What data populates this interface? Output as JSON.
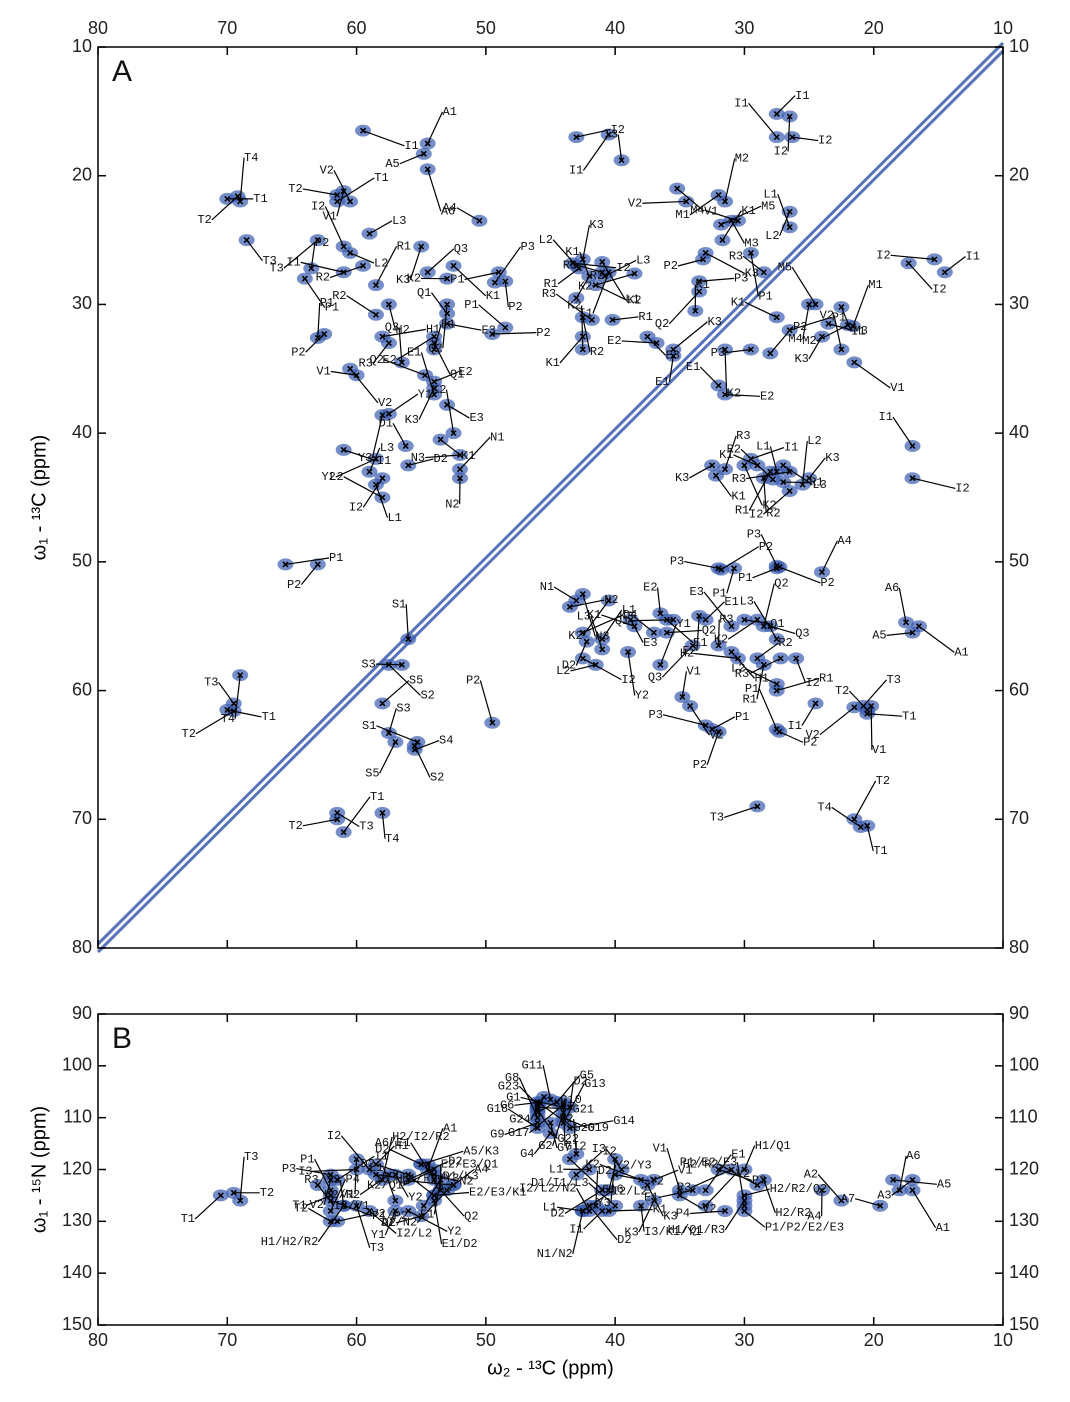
{
  "chart_data": [
    {
      "type": "scatter",
      "panel_label": "A",
      "ylabel": "ω₁ - ¹³C (ppm)",
      "x_tick_labels": "top",
      "xlim": [
        80,
        10
      ],
      "ylim": [
        10,
        80
      ],
      "xticks": [
        80,
        70,
        60,
        50,
        40,
        30,
        20,
        10
      ],
      "yticks": [
        10,
        20,
        30,
        40,
        50,
        60,
        70,
        80
      ],
      "diagonal": true,
      "color": "#3a5cb0",
      "labels": [
        "T1",
        "T2",
        "T4",
        "T3",
        "T2",
        "T1",
        "V1",
        "V2",
        "I1",
        "A5",
        "A1",
        "A6",
        "A4",
        "I2",
        "I1",
        "I3",
        "V1",
        "V2",
        "I1",
        "I2",
        "I1",
        "I2",
        "M1",
        "M2",
        "M3",
        "M4",
        "M5",
        "L2",
        "L1",
        "K3",
        "P2",
        "K1",
        "P1",
        "R3",
        "P3",
        "Q2",
        "K1",
        "I2",
        "I2",
        "I1",
        "M4",
        "M5",
        "M3",
        "M2",
        "M1",
        "I1",
        "K1",
        "P1",
        "K3",
        "V2",
        "V1",
        "P3",
        "P2",
        "K2",
        "E1",
        "E2",
        "T3",
        "P2",
        "P1",
        "I1",
        "L3",
        "K3",
        "I2",
        "L2",
        "R2",
        "R1",
        "H2",
        "R2",
        "H1",
        "R3",
        "Q3",
        "K1",
        "K2",
        "Q3",
        "Q2",
        "Q1",
        "E3",
        "E2",
        "E1",
        "Q1",
        "Q2",
        "E2",
        "K3",
        "E1",
        "E3",
        "P1",
        "P3",
        "P2",
        "P1",
        "P2",
        "P2",
        "P1",
        "V2",
        "V1",
        "Y1",
        "Y3",
        "D1",
        "I1",
        "Y2",
        "L3",
        "L1",
        "L2",
        "D2",
        "I2",
        "K2",
        "K1",
        "N3",
        "N1",
        "N2",
        "L2",
        "I2",
        "R1",
        "K3",
        "L1",
        "R3",
        "L3",
        "I1",
        "K1",
        "K2",
        "K2",
        "R2",
        "R2",
        "R3",
        "R1",
        "K1",
        "K2",
        "E3",
        "E2",
        "K3",
        "E1",
        "I1",
        "I2",
        "K3",
        "R3",
        "K2",
        "K1",
        "I1",
        "R1",
        "L1",
        "L3",
        "R3",
        "K3",
        "R2",
        "R2",
        "R1",
        "I2",
        "L2",
        "K1",
        "P3",
        "P2",
        "P1",
        "P3",
        "P2",
        "P1",
        "A4",
        "N3",
        "N1",
        "N2",
        "K2",
        "E2",
        "E1",
        "Q1",
        "E1",
        "E2",
        "E3",
        "Q1",
        "K2",
        "Q2",
        "E3",
        "K1",
        "D4",
        "D2",
        "L3",
        "I2",
        "L2",
        "L1",
        "Y2",
        "K3",
        "Q2",
        "Q3",
        "R3",
        "H1",
        "H2",
        "R2",
        "R1",
        "L3",
        "Q3",
        "R3",
        "Y1",
        "I2",
        "L2",
        "R1",
        "I1",
        "A6",
        "A1",
        "A5",
        "T3",
        "V1",
        "T2",
        "T1",
        "V2",
        "V1",
        "V2",
        "P3",
        "P1",
        "P2",
        "P1",
        "P2",
        "T3",
        "T2",
        "T1",
        "T4",
        "P1",
        "P2",
        "S1",
        "S2",
        "S3",
        "S5",
        "T4",
        "T3",
        "T1",
        "T2",
        "S3",
        "S2",
        "S1",
        "S4",
        "S5",
        "P2",
        "T3",
        "T2",
        "T1",
        "T4"
      ],
      "x": [
        70,
        69.2,
        69,
        68.5,
        61.5,
        61.5,
        61,
        60.5,
        59.5,
        54.8,
        54.5,
        54.5,
        50.5,
        43,
        40.5,
        39.5,
        35.2,
        34.5,
        27.5,
        26.5,
        27.5,
        26.3,
        32,
        31.5,
        31,
        30.5,
        31.8,
        26.5,
        26.5,
        33,
        33.2,
        31.7,
        29.5,
        28.5,
        33.5,
        33.5,
        33.8,
        17.3,
        15.3,
        14.5,
        25,
        24.5,
        23.5,
        22,
        21.6,
        22.5,
        27.5,
        26.5,
        24,
        22.5,
        21.5,
        29.5,
        28,
        31.5,
        32,
        31.5,
        63,
        63.5,
        64,
        61,
        59,
        55,
        61,
        60.5,
        59.5,
        58.5,
        57.5,
        58.5,
        58,
        57.5,
        56.5,
        52.5,
        53,
        54.5,
        53,
        53,
        53,
        54,
        54,
        54,
        54.7,
        54,
        54,
        54,
        53,
        49,
        49.3,
        48.5,
        48.5,
        49.5,
        62.5,
        63,
        60.5,
        60,
        57.5,
        58,
        56.2,
        61,
        58.5,
        59,
        58.5,
        58,
        56,
        58,
        52.5,
        53.5,
        52,
        52,
        52,
        43,
        43.3,
        42.8,
        42.5,
        41,
        41,
        40.8,
        40.5,
        42,
        41.5,
        38.5,
        43,
        42.5,
        41.8,
        40.2,
        42.5,
        42.5,
        37.5,
        36.8,
        35.5,
        35.5,
        17,
        17,
        32.5,
        31.5,
        30,
        29,
        29.5,
        28,
        27.5,
        27,
        26.5,
        25,
        28.5,
        27.8,
        27,
        26.5,
        25.5,
        32.2,
        32,
        31.8,
        30.8,
        27.5,
        27.3,
        27.5,
        24,
        42.5,
        43,
        43.5,
        40.5,
        36.5,
        36,
        35.5,
        33,
        33.5,
        31,
        30,
        29,
        28.5,
        38.8,
        38.5,
        42.5,
        42.2,
        41,
        42.5,
        41.5,
        41,
        39,
        37,
        36,
        34,
        32,
        31,
        30.5,
        29,
        28.5,
        27.5,
        28,
        27.2,
        36.5,
        26,
        27.5,
        27.5,
        24.5,
        17.5,
        16.5,
        17,
        20.8,
        20.2,
        20.5,
        20.5,
        21.5,
        34.8,
        34.2,
        33,
        32.5,
        32,
        27.5,
        27.3,
        29,
        21.5,
        20.5,
        21,
        65.5,
        63,
        56,
        57.5,
        56.5,
        58,
        69,
        69.5,
        70,
        69.5,
        57.5,
        55.5,
        55.3,
        55.5,
        57,
        49.5,
        61.5,
        61.5,
        61,
        58
      ],
      "y": [
        21.8,
        21.6,
        22,
        25,
        21.5,
        22,
        21.2,
        22,
        16.5,
        18.3,
        17.5,
        19.5,
        23.5,
        17,
        16.8,
        18.8,
        21,
        22,
        15.2,
        15.4,
        17,
        17,
        21.5,
        22,
        23.5,
        23.5,
        23.8,
        22.8,
        24,
        26,
        26.5,
        25,
        26,
        27.5,
        28.2,
        29,
        30.5,
        26.8,
        26.5,
        27.5,
        30,
        30,
        31.5,
        31.6,
        31.7,
        30.2,
        31,
        32,
        32.5,
        33.5,
        34.5,
        33.5,
        33.8,
        33.5,
        36.3,
        37,
        25,
        27.2,
        28,
        27.5,
        24.5,
        25.5,
        25.5,
        26,
        27,
        28.5,
        30,
        30.8,
        32.5,
        33,
        34.5,
        27,
        28,
        27.5,
        30,
        30.7,
        31.5,
        32.5,
        33.5,
        33,
        35.5,
        36,
        36.5,
        37,
        37.8,
        27.5,
        28.3,
        28.2,
        31.8,
        32.3,
        32.3,
        32.6,
        35,
        35.5,
        38.5,
        38.6,
        41,
        41.3,
        42,
        43,
        44,
        45,
        42.5,
        43.5,
        40,
        40.5,
        41.7,
        42.8,
        43.5,
        27,
        26.8,
        27.2,
        26.5,
        26.7,
        27.5,
        27.8,
        27.5,
        27.8,
        28.5,
        27.6,
        29.5,
        31,
        31.2,
        31.2,
        32.5,
        33.5,
        32.5,
        33,
        33.5,
        34,
        41,
        43.5,
        42.5,
        42.8,
        42.5,
        42.5,
        42,
        43,
        43,
        42.5,
        43,
        43.5,
        43.5,
        43.6,
        43.8,
        44.5,
        44,
        43.3,
        50.5,
        50.6,
        50.5,
        50.3,
        50.4,
        50.5,
        50.8,
        52.5,
        53,
        53.5,
        53,
        54,
        54.5,
        54.5,
        54.5,
        54.2,
        55,
        54.5,
        54.5,
        55,
        54.5,
        55,
        55.5,
        56.2,
        56.8,
        57.5,
        58,
        56,
        57,
        55.5,
        55.5,
        56.5,
        56.5,
        57,
        57.5,
        57.5,
        58,
        56,
        55,
        57.5,
        58,
        57.5,
        59.5,
        60,
        61,
        54.7,
        55,
        55.5,
        61.2,
        61.2,
        61.5,
        61.8,
        61.3,
        60.5,
        61.2,
        62.7,
        63,
        63.2,
        63,
        63.2,
        69,
        70,
        70.5,
        70.6,
        50.2,
        50.2,
        56,
        58,
        58,
        61,
        58.8,
        61,
        61.5,
        61.6,
        63.3,
        64.3,
        64,
        64.6,
        64,
        62.5,
        69.5,
        70,
        71,
        69.5
      ]
    },
    {
      "type": "scatter",
      "panel_label": "B",
      "ylabel": "ω₁ - ¹⁵N (ppm)",
      "xlabel": "ω₂ - ¹³C (ppm)",
      "x_tick_labels": "bottom",
      "xlim": [
        80,
        10
      ],
      "ylim": [
        90,
        150
      ],
      "xticks": [
        80,
        70,
        60,
        50,
        40,
        30,
        20,
        10
      ],
      "yticks": [
        90,
        100,
        110,
        120,
        130,
        140,
        150
      ],
      "diagonal": false,
      "color": "#3a5cb0",
      "labels": [
        "T2",
        "T1",
        "T3",
        "I3/V1",
        "P3",
        "I1",
        "V2",
        "P1",
        "P1/P2",
        "T1",
        "P4",
        "T3",
        "T2",
        "V2",
        "H1/H2/R2",
        "R3/Y3",
        "I2/L2",
        "I3",
        "H1",
        "V1",
        "I2",
        "L1/R3/Y3",
        "H2/R2",
        "H2/I2/R2",
        "Y2",
        "D2",
        "D2",
        "Y1",
        "L1",
        "Y2",
        "D2",
        "D1/K3",
        "E1/D2",
        "D1/L3",
        "E2/E3/K1",
        "A7/N2",
        "E2/E3/Q1",
        "Q2",
        "N2",
        "A4",
        "E1",
        "A6/E1",
        "N2",
        "K2/Q1",
        "A1",
        "A3",
        "D2",
        "A5/K3",
        "G24",
        "G11",
        "G20",
        "G6",
        "G5",
        "G12",
        "G23",
        "G21",
        "G17",
        "D2",
        "G22",
        "G1",
        "G10",
        "G2",
        "G8",
        "G19",
        "G9",
        "G13",
        "G7",
        "G18",
        "G14",
        "G4",
        "N2",
        "G16",
        "L1",
        "I2",
        "Y3",
        "I3",
        "Y2",
        "D2",
        "Y2/Y3",
        "K3",
        "K2",
        "V1",
        "K3",
        "V1",
        "V2",
        "E1",
        "E1",
        "I3/K1/Y1",
        "D1/I1/L3",
        "K1",
        "I1",
        "D2",
        "D2",
        "L1",
        "I2/L2",
        "N1/N2",
        "I2/L2/N2",
        "P3",
        "R3",
        "H1/Q1",
        "H2/R2",
        "H2/R2",
        "H2/R2/Q2",
        "H1/Q1/R3",
        "P1/E2/E3",
        "P1/P2/E2/E3",
        "P4",
        "V2",
        "A4",
        "A2",
        "A5",
        "A3",
        "A6",
        "A1",
        "A7"
      ],
      "x": [
        69.5,
        70.5,
        69,
        63,
        62,
        61.5,
        62,
        62,
        62,
        62,
        62,
        60,
        62,
        61.5,
        61,
        61,
        59,
        60,
        58.5,
        60,
        59,
        58.5,
        57.5,
        58,
        57,
        56,
        56,
        57,
        57,
        56,
        55,
        54.8,
        54,
        54,
        54,
        53,
        53.5,
        53.5,
        52.5,
        52.5,
        53.5,
        54,
        54,
        54,
        54.5,
        54.5,
        55,
        55,
        45.5,
        45,
        46,
        45.8,
        44.5,
        44,
        46,
        46,
        44,
        43.5,
        46,
        44,
        46,
        44,
        46,
        44,
        46,
        44,
        45,
        46,
        43.5,
        45,
        43,
        43.5,
        42,
        43,
        40,
        39.5,
        40,
        41,
        40.5,
        37.5,
        38,
        37,
        37,
        35,
        35,
        34,
        33,
        38,
        40,
        40.5,
        41,
        41.5,
        42,
        42.5,
        42.5,
        42.5,
        42,
        32,
        31,
        30,
        28.5,
        29,
        30,
        30,
        30,
        30,
        31.5,
        33,
        24,
        22.5,
        18.5,
        17,
        18,
        17,
        19.5
      ],
      "y": [
        124.5,
        125,
        126,
        123,
        121,
        122,
        122,
        124,
        126,
        125,
        128,
        127,
        130,
        130,
        127,
        127,
        128,
        120,
        119,
        118,
        120,
        121,
        121,
        122,
        121,
        121,
        122,
        128,
        126,
        128,
        129,
        127,
        126,
        125,
        125,
        124,
        124,
        124,
        123,
        123,
        122,
        122,
        121,
        120,
        120,
        119,
        119,
        119,
        106,
        106.5,
        107,
        107,
        107,
        107,
        107.5,
        108,
        107.5,
        108,
        108.5,
        108,
        109,
        109,
        110,
        110,
        111,
        111,
        111,
        112,
        112,
        113,
        117,
        118,
        120,
        121,
        118,
        120,
        121,
        124,
        124,
        123,
        122,
        122,
        126,
        124,
        125,
        124,
        124,
        127,
        127,
        128,
        128,
        127,
        127,
        128,
        128,
        128,
        128,
        120,
        120,
        120,
        122,
        123,
        125,
        126,
        127,
        128,
        128,
        127,
        124,
        126,
        122,
        122,
        124,
        124,
        127
      ]
    }
  ]
}
